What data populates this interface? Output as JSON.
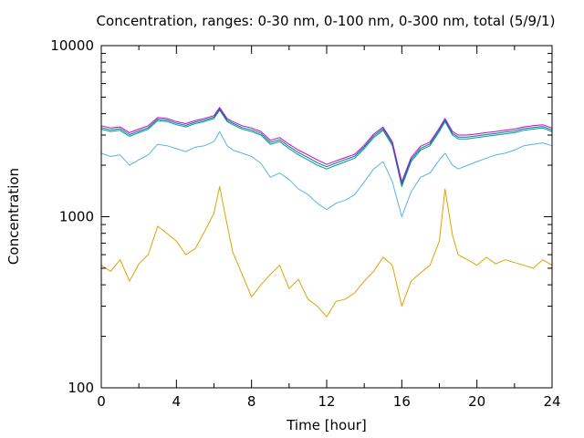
{
  "chart_data": {
    "type": "line",
    "title": "Concentration, ranges: 0-30 nm, 0-100 nm, 0-300 nm, total (5/9/1)",
    "xlabel": "Time [hour]",
    "ylabel": "Concentration",
    "xlim": [
      0,
      24
    ],
    "ylim": [
      100,
      10000
    ],
    "y_scale": "log",
    "grid": false,
    "legend": "none",
    "x_ticks": [
      "0",
      "4",
      "8",
      "12",
      "16",
      "20",
      "24"
    ],
    "x_tick_values": [
      0,
      4,
      8,
      12,
      16,
      20,
      24
    ],
    "y_ticks": [
      "100",
      "1000",
      "10000"
    ],
    "y_tick_values": [
      100,
      1000,
      10000
    ],
    "series": [
      {
        "color": "#e5a000",
        "x": [
          0,
          0.5,
          1,
          1.5,
          2,
          2.5,
          3,
          3.5,
          4,
          4.5,
          5,
          5.5,
          6,
          6.3,
          6.7,
          7,
          7.5,
          8,
          8.5,
          9,
          9.5,
          10,
          10.5,
          11,
          11.5,
          12,
          12.5,
          13,
          13.5,
          14,
          14.5,
          15,
          15.5,
          16,
          16.5,
          17,
          17.5,
          18,
          18.3,
          18.7,
          19,
          19.5,
          20,
          20.5,
          21,
          21.5,
          22,
          22.5,
          23,
          23.5,
          24
        ],
        "values": [
          520,
          480,
          560,
          420,
          530,
          600,
          880,
          800,
          720,
          600,
          650,
          820,
          1050,
          1500,
          900,
          620,
          460,
          340,
          400,
          460,
          520,
          380,
          430,
          330,
          300,
          260,
          320,
          330,
          360,
          420,
          480,
          580,
          520,
          300,
          420,
          470,
          520,
          720,
          1450,
          780,
          600,
          560,
          520,
          580,
          530,
          560,
          540,
          520,
          500,
          560,
          520
        ]
      },
      {
        "color": "#56b4e9",
        "x": [
          0,
          0.5,
          1,
          1.5,
          2,
          2.5,
          3,
          3.5,
          4,
          4.5,
          5,
          5.5,
          6,
          6.3,
          6.7,
          7,
          7.5,
          8,
          8.5,
          9,
          9.5,
          10,
          10.5,
          11,
          11.5,
          12,
          12.5,
          13,
          13.5,
          14,
          14.5,
          15,
          15.5,
          16,
          16.5,
          17,
          17.5,
          18,
          18.3,
          18.7,
          19,
          19.5,
          20,
          20.5,
          21,
          21.5,
          22,
          22.5,
          23,
          23.5,
          24
        ],
        "values": [
          2350,
          2250,
          2300,
          2000,
          2150,
          2300,
          2650,
          2600,
          2500,
          2400,
          2550,
          2600,
          2750,
          3150,
          2600,
          2450,
          2350,
          2250,
          2050,
          1700,
          1800,
          1650,
          1450,
          1350,
          1200,
          1100,
          1200,
          1250,
          1350,
          1600,
          1900,
          2100,
          1600,
          1000,
          1400,
          1700,
          1800,
          2150,
          2350,
          2000,
          1900,
          2000,
          2100,
          2200,
          2300,
          2350,
          2450,
          2600,
          2650,
          2700,
          2600
        ]
      },
      {
        "color": "#009e73",
        "x": [
          0,
          0.5,
          1,
          1.5,
          2,
          2.5,
          3,
          3.5,
          4,
          4.5,
          5,
          5.5,
          6,
          6.3,
          6.7,
          7,
          7.5,
          8,
          8.5,
          9,
          9.5,
          10,
          10.5,
          11,
          11.5,
          12,
          12.5,
          13,
          13.5,
          14,
          14.5,
          15,
          15.5,
          16,
          16.5,
          17,
          17.5,
          18,
          18.3,
          18.7,
          19,
          19.5,
          20,
          20.5,
          21,
          21.5,
          22,
          22.5,
          23,
          23.5,
          24
        ],
        "values": [
          3250,
          3150,
          3200,
          2950,
          3100,
          3250,
          3650,
          3600,
          3450,
          3350,
          3500,
          3600,
          3750,
          4200,
          3600,
          3450,
          3250,
          3150,
          3000,
          2650,
          2750,
          2500,
          2300,
          2150,
          2000,
          1900,
          2000,
          2100,
          2200,
          2500,
          2900,
          3200,
          2600,
          1500,
          2100,
          2450,
          2600,
          3150,
          3600,
          3000,
          2850,
          2850,
          2900,
          2950,
          3000,
          3050,
          3100,
          3200,
          3250,
          3300,
          3150
        ]
      },
      {
        "color": "#0072b2",
        "x": [
          0,
          0.5,
          1,
          1.5,
          2,
          2.5,
          3,
          3.5,
          4,
          4.5,
          5,
          5.5,
          6,
          6.3,
          6.7,
          7,
          7.5,
          8,
          8.5,
          9,
          9.5,
          10,
          10.5,
          11,
          11.5,
          12,
          12.5,
          13,
          13.5,
          14,
          14.5,
          15,
          15.5,
          16,
          16.5,
          17,
          17.5,
          18,
          18.3,
          18.7,
          19,
          19.5,
          20,
          20.5,
          21,
          21.5,
          22,
          22.5,
          23,
          23.5,
          24
        ],
        "values": [
          3320,
          3220,
          3270,
          3020,
          3170,
          3320,
          3720,
          3670,
          3520,
          3420,
          3570,
          3670,
          3820,
          4270,
          3670,
          3520,
          3320,
          3220,
          3070,
          2720,
          2820,
          2570,
          2370,
          2220,
          2070,
          1960,
          2060,
          2160,
          2260,
          2560,
          2970,
          3270,
          2670,
          1550,
          2160,
          2510,
          2660,
          3220,
          3670,
          3070,
          2920,
          2920,
          2970,
          3020,
          3070,
          3120,
          3170,
          3270,
          3320,
          3370,
          3220
        ]
      },
      {
        "color": "#cc00cc",
        "x": [
          0,
          0.5,
          1,
          1.5,
          2,
          2.5,
          3,
          3.5,
          4,
          4.5,
          5,
          5.5,
          6,
          6.3,
          6.7,
          7,
          7.5,
          8,
          8.5,
          9,
          9.5,
          10,
          10.5,
          11,
          11.5,
          12,
          12.5,
          13,
          13.5,
          14,
          14.5,
          15,
          15.5,
          16,
          16.5,
          17,
          17.5,
          18,
          18.3,
          18.7,
          19,
          19.5,
          20,
          20.5,
          21,
          21.5,
          22,
          22.5,
          23,
          23.5,
          24
        ],
        "values": [
          3400,
          3300,
          3350,
          3100,
          3250,
          3400,
          3800,
          3750,
          3600,
          3500,
          3650,
          3750,
          3900,
          4350,
          3750,
          3600,
          3400,
          3300,
          3150,
          2800,
          2900,
          2650,
          2450,
          2300,
          2150,
          2020,
          2120,
          2220,
          2320,
          2620,
          3040,
          3340,
          2740,
          1600,
          2220,
          2580,
          2730,
          3300,
          3750,
          3150,
          3000,
          3000,
          3050,
          3100,
          3150,
          3200,
          3250,
          3350,
          3400,
          3450,
          3300
        ]
      }
    ]
  }
}
